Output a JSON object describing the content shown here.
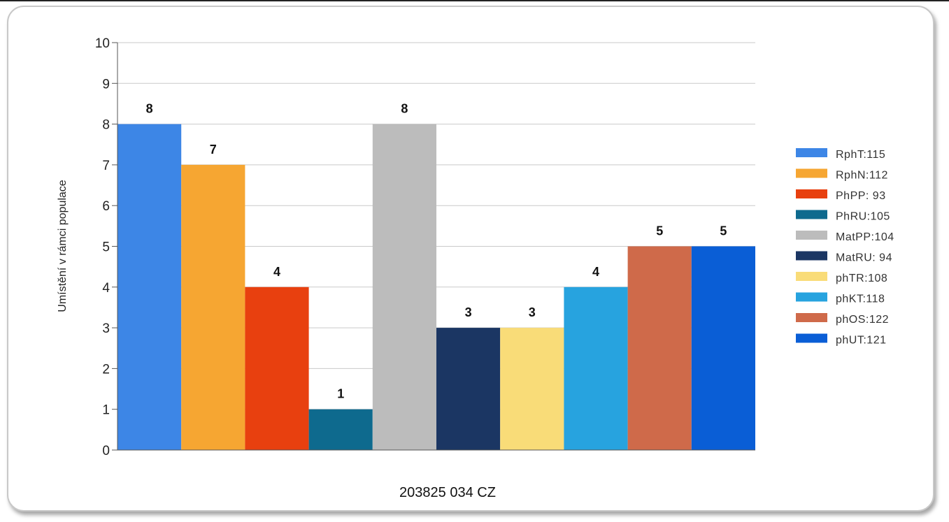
{
  "chart_data": {
    "type": "bar",
    "title": "",
    "xlabel": "203825 034 CZ",
    "ylabel": "Umístění v rámci populace",
    "ylim": [
      0,
      10
    ],
    "yticks": [
      0,
      1,
      2,
      3,
      4,
      5,
      6,
      7,
      8,
      9,
      10
    ],
    "grid": true,
    "legend_position": "right",
    "categories": [
      "RphT:115",
      "RphN:112",
      "PhPP: 93",
      "PhRU:105",
      "MatPP:104",
      "MatRU: 94",
      "phTR:108",
      "phKT:118",
      "phOS:122",
      "phUT:121"
    ],
    "values": [
      8,
      7,
      4,
      1,
      8,
      3,
      3,
      4,
      5,
      5
    ],
    "colors": [
      "#3d86e6",
      "#f6a632",
      "#e8400f",
      "#0e6a8e",
      "#bcbcbc",
      "#1b3663",
      "#f9dc78",
      "#27a3df",
      "#cf6a4a",
      "#0a5ed6"
    ]
  }
}
